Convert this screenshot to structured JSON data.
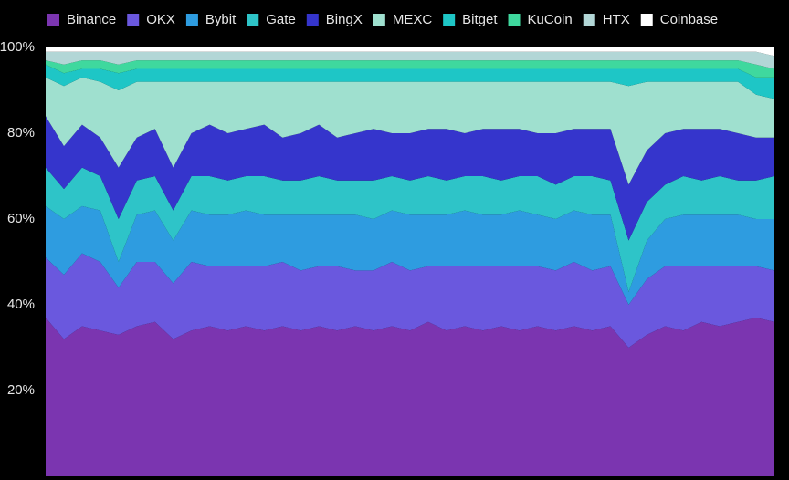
{
  "chart_data": {
    "type": "stacked-area",
    "ylim": [
      0,
      100
    ],
    "yticks": [
      {
        "value": 20,
        "label": "20%"
      },
      {
        "value": 40,
        "label": "40%"
      },
      {
        "value": 60,
        "label": "60%"
      },
      {
        "value": 80,
        "label": "80%"
      },
      {
        "value": 100,
        "label": "100%"
      }
    ],
    "legend": "top",
    "series": [
      {
        "name": "Binance",
        "color": "#7b35b0",
        "values": [
          37,
          32,
          35,
          34,
          33,
          35,
          36,
          32,
          34,
          35,
          34,
          35,
          34,
          35,
          34,
          35,
          34,
          35,
          34,
          35,
          34,
          36,
          34,
          35,
          34,
          35,
          34,
          35,
          34,
          35,
          34,
          35,
          30,
          33,
          35,
          34,
          36,
          35,
          36,
          37,
          36
        ]
      },
      {
        "name": "OKX",
        "color": "#6a58de",
        "values": [
          14,
          15,
          17,
          16,
          11,
          15,
          14,
          13,
          16,
          14,
          15,
          14,
          15,
          15,
          14,
          14,
          15,
          13,
          14,
          15,
          14,
          13,
          15,
          14,
          15,
          14,
          15,
          14,
          14,
          15,
          14,
          14,
          10,
          13,
          14,
          15,
          13,
          14,
          13,
          12,
          12
        ]
      },
      {
        "name": "Bybit",
        "color": "#2e9ce0",
        "values": [
          12,
          13,
          11,
          12,
          6,
          11,
          12,
          10,
          12,
          12,
          12,
          13,
          12,
          11,
          13,
          12,
          12,
          13,
          12,
          12,
          13,
          12,
          12,
          13,
          12,
          12,
          13,
          12,
          12,
          12,
          13,
          12,
          3,
          9,
          11,
          12,
          12,
          12,
          12,
          11,
          12
        ]
      },
      {
        "name": "Gate",
        "color": "#2ec4c8",
        "values": [
          9,
          7,
          9,
          8,
          10,
          8,
          8,
          7,
          8,
          9,
          8,
          8,
          9,
          8,
          8,
          9,
          8,
          8,
          9,
          8,
          8,
          9,
          8,
          8,
          9,
          8,
          8,
          9,
          8,
          8,
          9,
          8,
          12,
          9,
          8,
          9,
          8,
          9,
          8,
          9,
          10
        ]
      },
      {
        "name": "BingX",
        "color": "#3535cc",
        "values": [
          12,
          10,
          10,
          9,
          12,
          10,
          11,
          10,
          10,
          12,
          11,
          11,
          12,
          10,
          11,
          12,
          10,
          11,
          12,
          10,
          11,
          11,
          12,
          10,
          11,
          12,
          11,
          10,
          12,
          11,
          11,
          12,
          13,
          12,
          12,
          11,
          12,
          11,
          11,
          10,
          9
        ]
      },
      {
        "name": "MEXC",
        "color": "#9fe0cf",
        "values": [
          9,
          14,
          11,
          13,
          18,
          13,
          11,
          20,
          12,
          10,
          12,
          11,
          10,
          13,
          12,
          10,
          13,
          12,
          11,
          12,
          12,
          11,
          11,
          12,
          11,
          11,
          11,
          12,
          12,
          11,
          11,
          11,
          23,
          16,
          12,
          11,
          11,
          11,
          12,
          10,
          9
        ]
      },
      {
        "name": "Bitget",
        "color": "#1ec6c6",
        "values": [
          3,
          3,
          2,
          3,
          4,
          3,
          3,
          3,
          3,
          3,
          3,
          3,
          3,
          3,
          3,
          3,
          3,
          3,
          3,
          3,
          3,
          3,
          3,
          3,
          3,
          3,
          3,
          3,
          3,
          3,
          3,
          3,
          4,
          3,
          3,
          3,
          3,
          3,
          3,
          4,
          5
        ]
      },
      {
        "name": "KuCoin",
        "color": "#3fd89e",
        "values": [
          1,
          2,
          2,
          2,
          2,
          2,
          2,
          2,
          2,
          2,
          2,
          2,
          2,
          2,
          2,
          2,
          2,
          2,
          2,
          2,
          2,
          2,
          2,
          2,
          2,
          2,
          2,
          2,
          2,
          2,
          2,
          2,
          2,
          2,
          2,
          2,
          2,
          2,
          2,
          3,
          2
        ]
      },
      {
        "name": "HTX",
        "color": "#b2d6d6",
        "values": [
          2,
          3,
          2,
          2,
          3,
          2,
          2,
          2,
          2,
          2,
          2,
          2,
          2,
          2,
          2,
          2,
          2,
          2,
          2,
          2,
          2,
          2,
          2,
          2,
          2,
          2,
          2,
          2,
          2,
          2,
          2,
          2,
          2,
          2,
          2,
          2,
          2,
          2,
          2,
          3,
          3
        ]
      },
      {
        "name": "Coinbase",
        "color": "#ffffff",
        "values": [
          1,
          1,
          1,
          1,
          1,
          1,
          1,
          1,
          1,
          1,
          1,
          1,
          1,
          1,
          1,
          1,
          1,
          1,
          1,
          1,
          1,
          1,
          1,
          1,
          1,
          1,
          1,
          1,
          1,
          1,
          1,
          1,
          1,
          1,
          1,
          1,
          1,
          1,
          1,
          1,
          2
        ]
      }
    ]
  }
}
